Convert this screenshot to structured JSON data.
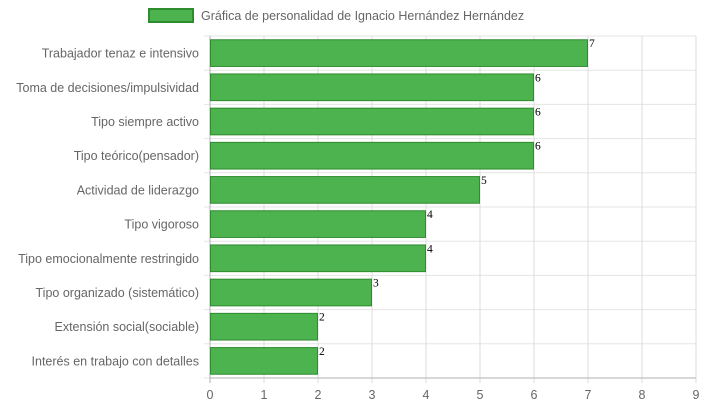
{
  "chart_data": {
    "type": "bar",
    "orientation": "horizontal",
    "categories": [
      "Trabajador tenaz e intensivo",
      "Toma de decisiones/impulsividad",
      "Tipo siempre activo",
      "Tipo teórico(pensador)",
      "Actividad de liderazgo",
      "Tipo vigoroso",
      "Tipo emocionalmente restringido",
      "Tipo organizado (sistemático)",
      "Extensión social(sociable)",
      "Interés en trabajo con detalles"
    ],
    "series": [
      {
        "name": "Gráfica de personalidad de Ignacio Hernández Hernández",
        "values": [
          7,
          6,
          6,
          6,
          5,
          4,
          4,
          3,
          2,
          2
        ],
        "color": "#4CB34E",
        "border_color": "#2E8B2E"
      }
    ],
    "xlim": [
      0,
      9
    ],
    "x_ticks": [
      0,
      1,
      2,
      3,
      4,
      5,
      6,
      7,
      8,
      9
    ],
    "xlabel": "",
    "ylabel": "",
    "title": "",
    "grid": true,
    "legend_position": "top",
    "data_labels": true
  }
}
